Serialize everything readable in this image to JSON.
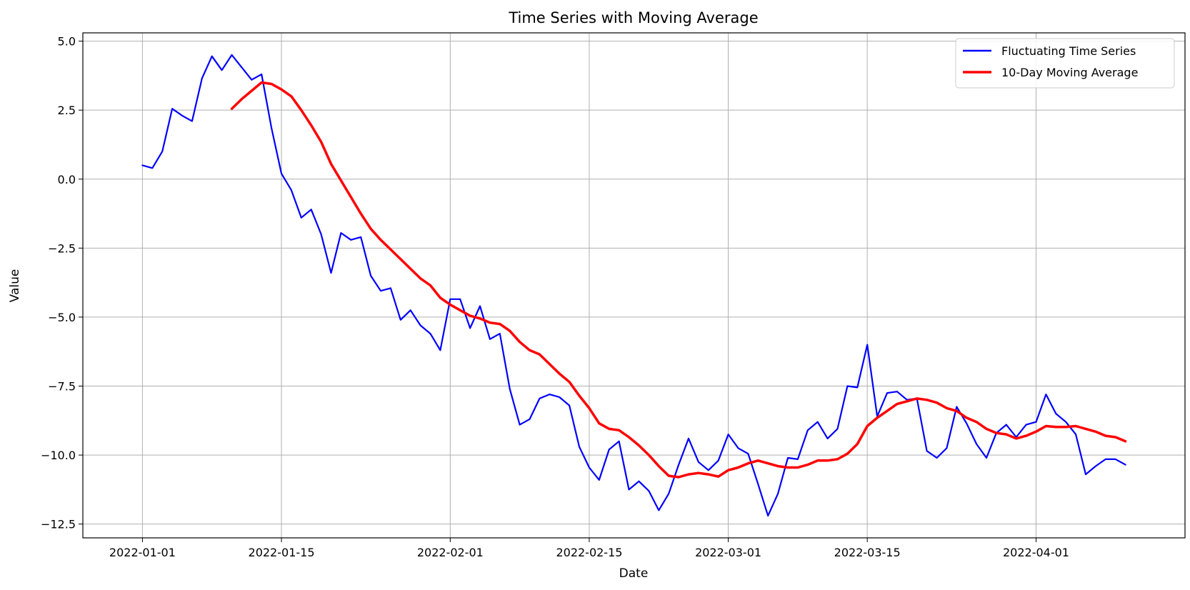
{
  "chart_data": {
    "type": "line",
    "title": "Time Series with Moving Average",
    "xlabel": "Date",
    "ylabel": "Value",
    "x_start": "2022-01-01",
    "xlim": [
      "2021-12-26",
      "2022-04-16"
    ],
    "ylim": [
      -13.0,
      5.3
    ],
    "x_ticks": [
      "2022-01-01",
      "2022-01-15",
      "2022-02-01",
      "2022-02-15",
      "2022-03-01",
      "2022-03-15",
      "2022-04-01"
    ],
    "y_ticks": [
      -12.5,
      -10.0,
      -7.5,
      -5.0,
      -2.5,
      0.0,
      2.5,
      5.0
    ],
    "y_tick_labels": [
      "−12.5",
      "−10.0",
      "−7.5",
      "−5.0",
      "−2.5",
      "0.0",
      "2.5",
      "5.0"
    ],
    "grid": true,
    "legend_position": "top-right",
    "series": [
      {
        "name": "Fluctuating Time Series",
        "color": "#0000ff",
        "values": [
          0.5,
          0.4,
          1.0,
          2.55,
          2.3,
          2.1,
          3.65,
          4.45,
          3.95,
          4.5,
          4.05,
          3.6,
          3.8,
          1.85,
          0.2,
          -0.4,
          -1.4,
          -1.1,
          -2.0,
          -3.4,
          -1.95,
          -2.2,
          -2.1,
          -3.5,
          -4.05,
          -3.95,
          -5.1,
          -4.75,
          -5.3,
          -5.6,
          -6.2,
          -4.35,
          -4.35,
          -5.4,
          -4.6,
          -5.8,
          -5.6,
          -7.6,
          -8.9,
          -8.7,
          -7.95,
          -7.8,
          -7.9,
          -8.2,
          -9.7,
          -10.45,
          -10.9,
          -9.8,
          -9.5,
          -11.25,
          -10.95,
          -11.3,
          -12.0,
          -11.4,
          -10.35,
          -9.4,
          -10.25,
          -10.55,
          -10.2,
          -9.25,
          -9.75,
          -9.95,
          -11.05,
          -12.2,
          -11.4,
          -10.1,
          -10.15,
          -9.1,
          -8.8,
          -9.4,
          -9.05,
          -7.5,
          -7.55,
          -6.0,
          -8.6,
          -7.75,
          -7.7,
          -8.0,
          -7.95,
          -9.85,
          -10.1,
          -9.75,
          -8.25,
          -8.85,
          -9.6,
          -10.1,
          -9.2,
          -8.9,
          -9.35,
          -8.9,
          -8.8,
          -7.8,
          -8.5,
          -8.8,
          -9.25,
          -10.7,
          -10.4,
          -10.15,
          -10.15,
          -10.35
        ]
      },
      {
        "name": "10-Day Moving Average",
        "color": "#ff0000",
        "start_index": 9,
        "values": [
          2.55,
          2.9,
          3.2,
          3.5,
          3.45,
          3.25,
          3.0,
          2.5,
          1.95,
          1.35,
          0.55,
          -0.05,
          -0.65,
          -1.25,
          -1.8,
          -2.2,
          -2.55,
          -2.9,
          -3.25,
          -3.6,
          -3.85,
          -4.3,
          -4.55,
          -4.75,
          -4.95,
          -5.05,
          -5.2,
          -5.25,
          -5.5,
          -5.9,
          -6.2,
          -6.35,
          -6.7,
          -7.05,
          -7.35,
          -7.85,
          -8.3,
          -8.85,
          -9.05,
          -9.1,
          -9.35,
          -9.65,
          -10.0,
          -10.4,
          -10.75,
          -10.8,
          -10.7,
          -10.65,
          -10.7,
          -10.78,
          -10.55,
          -10.45,
          -10.3,
          -10.2,
          -10.3,
          -10.4,
          -10.45,
          -10.45,
          -10.35,
          -10.2,
          -10.2,
          -10.15,
          -9.95,
          -9.6,
          -8.95,
          -8.65,
          -8.4,
          -8.15,
          -8.05,
          -7.95,
          -8.0,
          -8.1,
          -8.3,
          -8.4,
          -8.65,
          -8.8,
          -9.05,
          -9.2,
          -9.25,
          -9.4,
          -9.3,
          -9.15,
          -8.95,
          -8.98,
          -8.98,
          -8.95,
          -9.05,
          -9.15,
          -9.3,
          -9.35,
          -9.5
        ]
      }
    ]
  }
}
